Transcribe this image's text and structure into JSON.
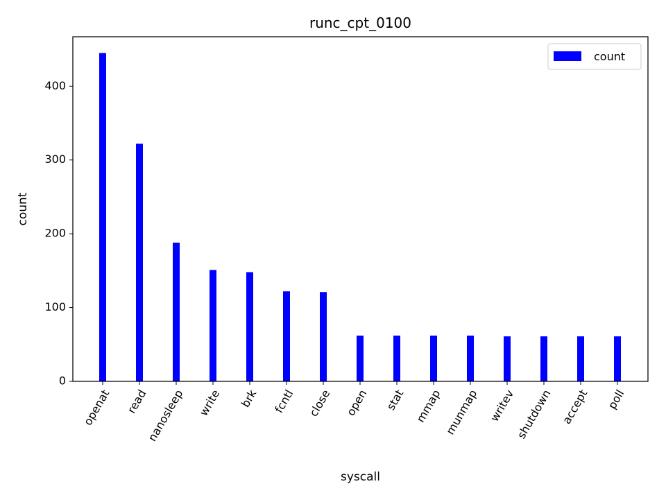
{
  "chart_data": {
    "type": "bar",
    "title": "runc_cpt_0100",
    "xlabel": "syscall",
    "ylabel": "count",
    "categories": [
      "openat",
      "read",
      "nanosleep",
      "write",
      "brk",
      "fcntl",
      "close",
      "open",
      "stat",
      "mmap",
      "munmap",
      "writev",
      "shutdown",
      "accept",
      "poll"
    ],
    "series": [
      {
        "name": "count",
        "color": "#0000ff",
        "values": [
          445,
          322,
          188,
          151,
          148,
          122,
          121,
          62,
          62,
          62,
          62,
          61,
          61,
          61,
          61
        ]
      }
    ],
    "ylim": [
      0,
      467
    ],
    "yticks": [
      0,
      100,
      200,
      300,
      400
    ],
    "grid": false,
    "legend_position": "top-right",
    "xtick_rotation_deg": 60
  }
}
